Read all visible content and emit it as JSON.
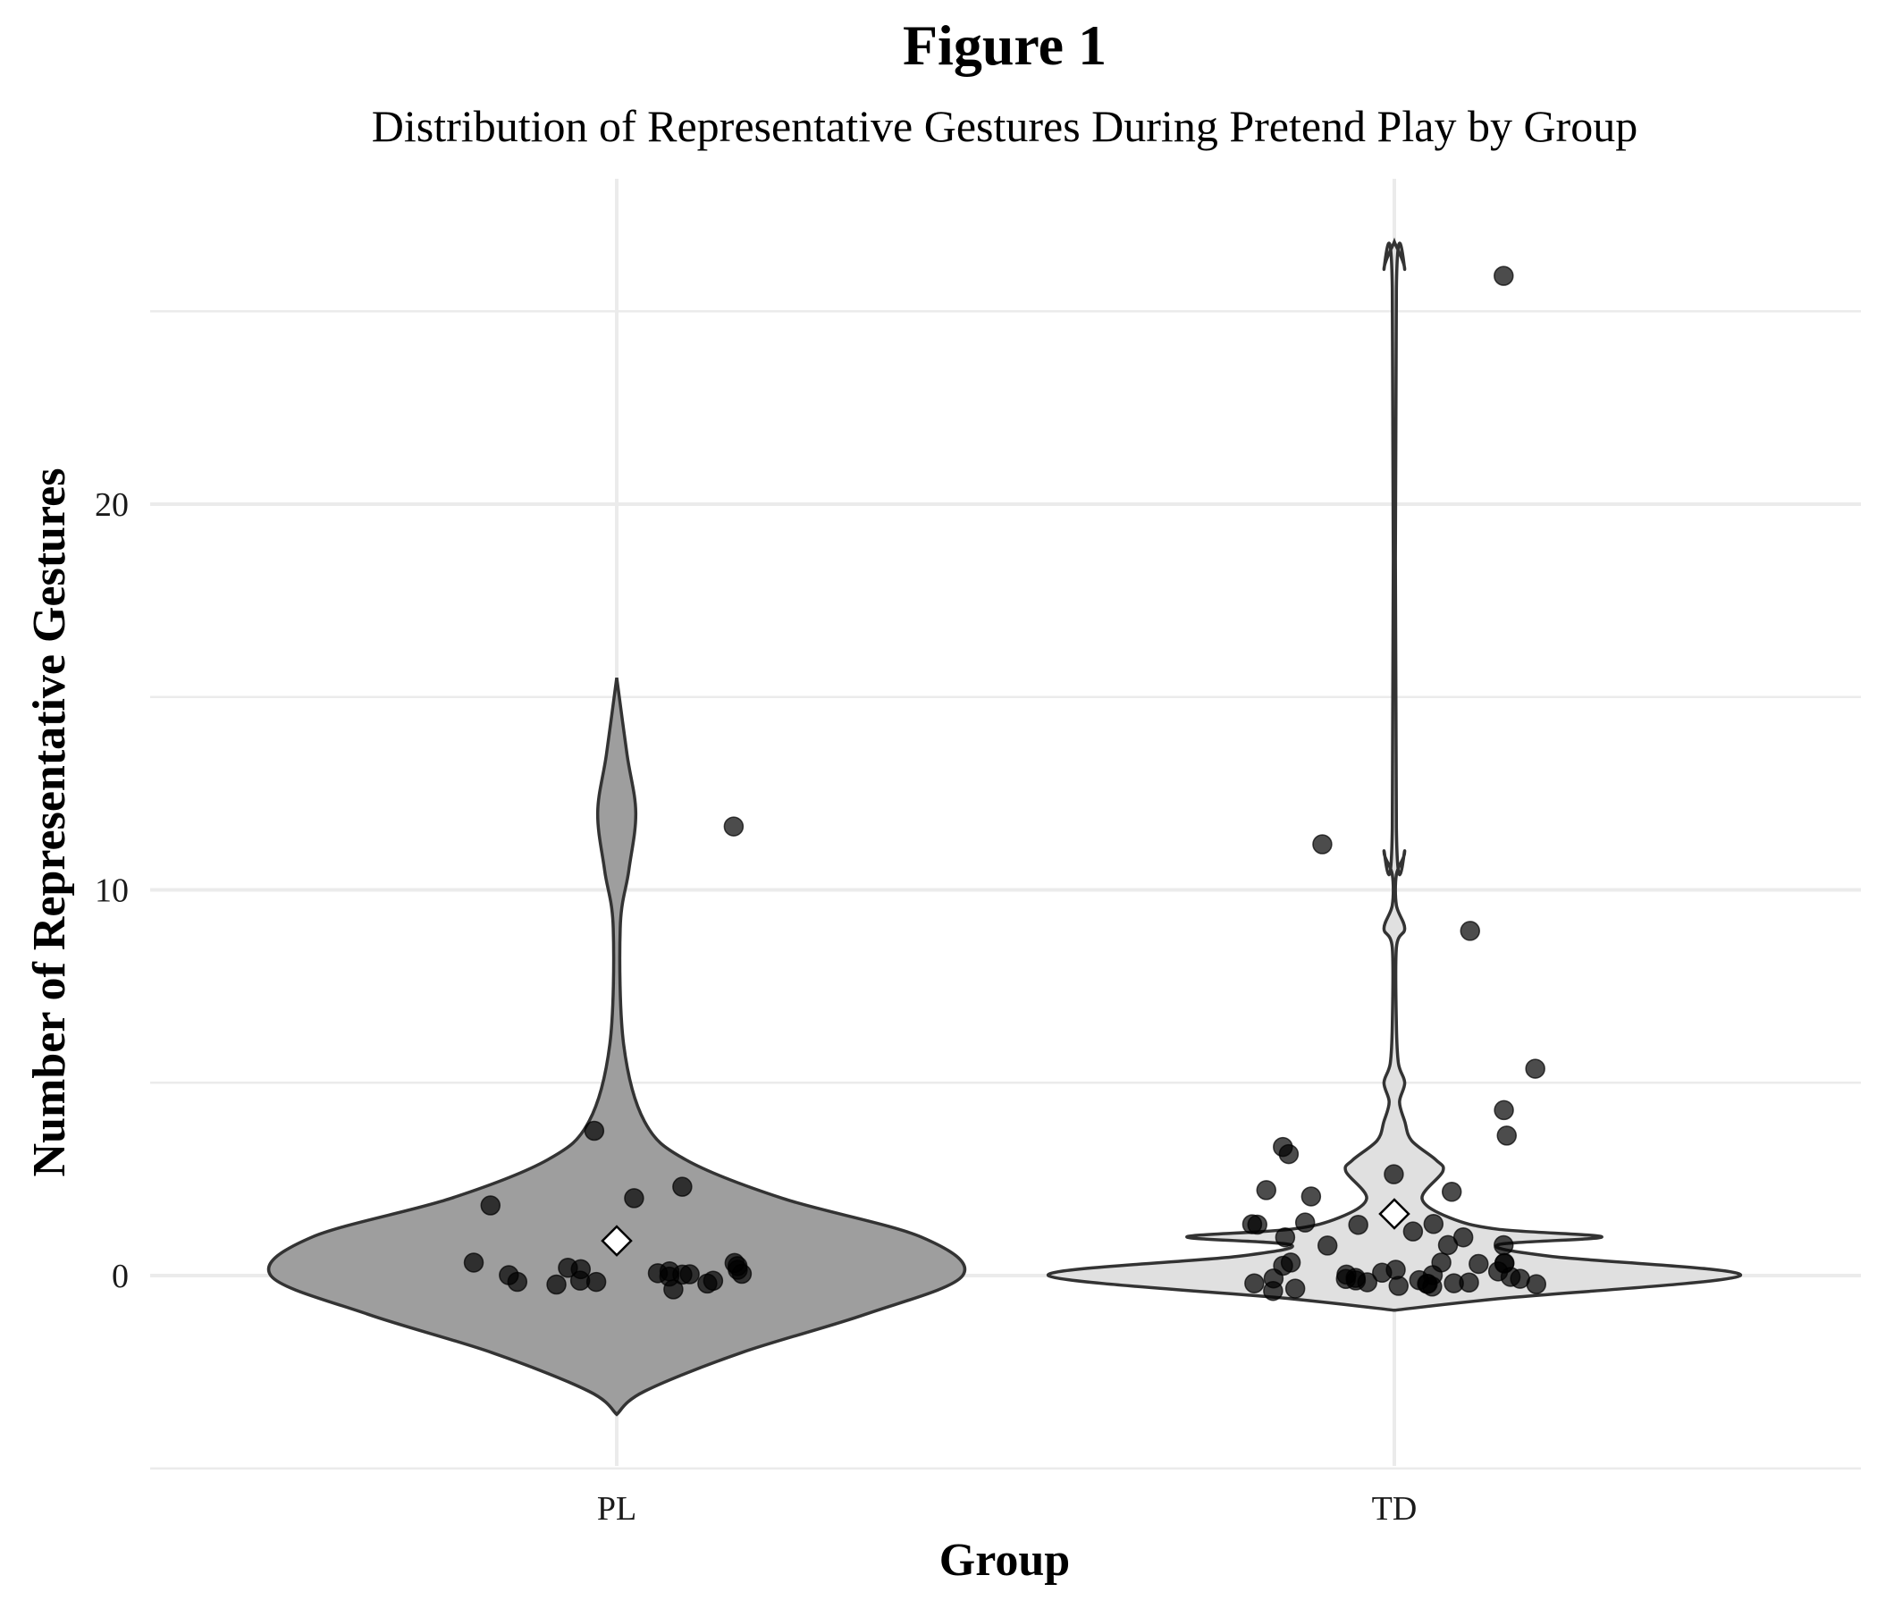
{
  "chart_data": {
    "type": "violin",
    "title": "Figure 1",
    "subtitle": "Distribution of Representative Gestures During Pretend Play by Group",
    "xlabel": "Group",
    "ylabel": "Number of Representative Gestures",
    "categories": [
      "PL",
      "TD"
    ],
    "ylim": [
      -5,
      27
    ],
    "y_ticks": [
      0,
      10,
      20
    ],
    "y_minor_ticks": [
      -5,
      5,
      15,
      25
    ],
    "grid": true,
    "series": [
      {
        "category": "PL",
        "fill": "#9e9e9e",
        "mean": 0.9,
        "points": [
          0,
          0,
          0,
          0,
          0,
          0,
          0,
          0,
          0,
          0,
          0,
          0,
          0,
          0,
          0,
          0,
          0,
          0,
          0,
          0,
          2,
          2,
          2,
          4,
          12
        ],
        "violin_range": [
          -3.6,
          15.5
        ],
        "density_profile": [
          [
            -3.6,
            0.0
          ],
          [
            -3.0,
            0.08
          ],
          [
            -2.0,
            0.36
          ],
          [
            -1.0,
            0.72
          ],
          [
            0.0,
            1.0
          ],
          [
            1.0,
            0.88
          ],
          [
            2.0,
            0.48
          ],
          [
            3.0,
            0.2
          ],
          [
            4.0,
            0.08
          ],
          [
            6.0,
            0.02
          ],
          [
            9.0,
            0.01
          ],
          [
            10.5,
            0.035
          ],
          [
            12.0,
            0.055
          ],
          [
            13.5,
            0.03
          ],
          [
            15.5,
            0.0
          ]
        ]
      },
      {
        "category": "TD",
        "fill": "#e0e0e0",
        "mean": 1.6,
        "points": [
          0,
          0,
          0,
          0,
          0,
          0,
          0,
          0,
          0,
          0,
          0,
          0,
          0,
          0,
          0,
          0,
          0,
          0,
          0,
          0,
          0,
          0,
          0,
          0,
          0,
          0,
          0,
          0,
          0,
          1,
          1,
          1,
          1,
          1,
          1,
          1,
          1,
          1,
          1,
          1,
          2,
          2,
          2,
          3,
          3,
          3,
          4,
          4,
          5,
          9,
          11,
          26
        ],
        "violin_range": [
          -0.9,
          26.8
        ],
        "density_profile": [
          [
            -0.9,
            0.0
          ],
          [
            -0.6,
            0.3
          ],
          [
            0.0,
            1.0
          ],
          [
            0.5,
            0.45
          ],
          [
            0.8,
            0.3
          ],
          [
            1.0,
            0.6
          ],
          [
            1.2,
            0.3
          ],
          [
            1.5,
            0.16
          ],
          [
            2.0,
            0.08
          ],
          [
            2.7,
            0.14
          ],
          [
            3.0,
            0.12
          ],
          [
            3.5,
            0.05
          ],
          [
            4.0,
            0.03
          ],
          [
            4.5,
            0.015
          ],
          [
            5.0,
            0.03
          ],
          [
            5.5,
            0.012
          ],
          [
            6.5,
            0.006
          ],
          [
            8.5,
            0.006
          ],
          [
            9.0,
            0.03
          ],
          [
            9.6,
            0.006
          ],
          [
            10.4,
            0.006
          ],
          [
            11.0,
            0.03
          ],
          [
            11.6,
            0.006
          ],
          [
            25.6,
            0.006
          ],
          [
            26.1,
            0.03
          ],
          [
            26.8,
            0.0
          ]
        ]
      }
    ]
  }
}
